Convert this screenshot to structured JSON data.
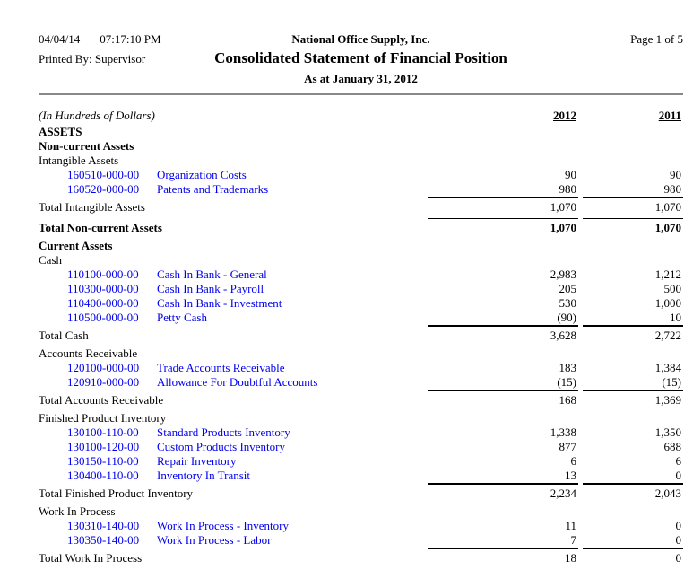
{
  "page": {
    "date": "04/04/14",
    "time": "07:17:10 PM",
    "company": "National Office Supply, Inc.",
    "page_label": "Page 1 of 5",
    "printed_by": "Printed By: Supervisor",
    "title": "Consolidated Statement of Financial Position",
    "subtitle": "As at January 31, 2012"
  },
  "columns": {
    "unit_note": "(In Hundreds of Dollars)",
    "col1": "2012",
    "col2": "2011"
  },
  "colors": {
    "link": "#0000EE",
    "text": "#000000",
    "rule": "#888888"
  },
  "rows": [
    {
      "type": "section",
      "label": "ASSETS"
    },
    {
      "type": "section",
      "label": "Non-current Assets"
    },
    {
      "type": "group",
      "label": "Intangible Assets"
    },
    {
      "type": "account",
      "code": "160510-000-00",
      "label": "Organization Costs",
      "v2012": "90",
      "v2011": "90"
    },
    {
      "type": "account",
      "code": "160520-000-00",
      "label": "Patents and Trademarks",
      "v2012": "980",
      "v2011": "980"
    },
    {
      "type": "total",
      "label": "Total Intangible Assets",
      "v2012": "1,070",
      "v2011": "1,070"
    },
    {
      "type": "spacer"
    },
    {
      "type": "grandtotal",
      "label": "Total Non-current Assets",
      "v2012": "1,070",
      "v2011": "1,070"
    },
    {
      "type": "spacer"
    },
    {
      "type": "section",
      "label": "Current Assets"
    },
    {
      "type": "group",
      "label": "Cash"
    },
    {
      "type": "account",
      "code": "110100-000-00",
      "label": "Cash In Bank - General",
      "v2012": "2,983",
      "v2011": "1,212"
    },
    {
      "type": "account",
      "code": "110300-000-00",
      "label": "Cash In Bank - Payroll",
      "v2012": "205",
      "v2011": "500"
    },
    {
      "type": "account",
      "code": "110400-000-00",
      "label": "Cash In Bank - Investment",
      "v2012": "530",
      "v2011": "1,000"
    },
    {
      "type": "account",
      "code": "110500-000-00",
      "label": "Petty Cash",
      "v2012": "(90)",
      "v2011": "10"
    },
    {
      "type": "total",
      "label": "Total Cash",
      "v2012": "3,628",
      "v2011": "2,722"
    },
    {
      "type": "spacer"
    },
    {
      "type": "group",
      "label": "Accounts Receivable"
    },
    {
      "type": "account",
      "code": "120100-000-00",
      "label": "Trade Accounts Receivable",
      "v2012": "183",
      "v2011": "1,384"
    },
    {
      "type": "account",
      "code": "120910-000-00",
      "label": "Allowance For Doubtful Accounts",
      "v2012": "(15)",
      "v2011": "(15)"
    },
    {
      "type": "total",
      "label": "Total Accounts Receivable",
      "v2012": "168",
      "v2011": "1,369"
    },
    {
      "type": "spacer"
    },
    {
      "type": "group",
      "label": "Finished Product Inventory"
    },
    {
      "type": "account",
      "code": "130100-110-00",
      "label": "Standard Products Inventory",
      "v2012": "1,338",
      "v2011": "1,350"
    },
    {
      "type": "account",
      "code": "130100-120-00",
      "label": "Custom Products Inventory",
      "v2012": "877",
      "v2011": "688"
    },
    {
      "type": "account",
      "code": "130150-110-00",
      "label": "Repair Inventory",
      "v2012": "6",
      "v2011": "6"
    },
    {
      "type": "account",
      "code": "130400-110-00",
      "label": "Inventory In Transit",
      "v2012": "13",
      "v2011": "0"
    },
    {
      "type": "total",
      "label": "Total Finished Product Inventory",
      "v2012": "2,234",
      "v2011": "2,043"
    },
    {
      "type": "spacer"
    },
    {
      "type": "group",
      "label": "Work In Process"
    },
    {
      "type": "account",
      "code": "130310-140-00",
      "label": "Work In Process - Inventory",
      "v2012": "11",
      "v2011": "0"
    },
    {
      "type": "account",
      "code": "130350-140-00",
      "label": "Work In Process - Labor",
      "v2012": "7",
      "v2011": "0"
    },
    {
      "type": "total",
      "label": "Total Work In Process",
      "v2012": "18",
      "v2011": "0"
    }
  ]
}
